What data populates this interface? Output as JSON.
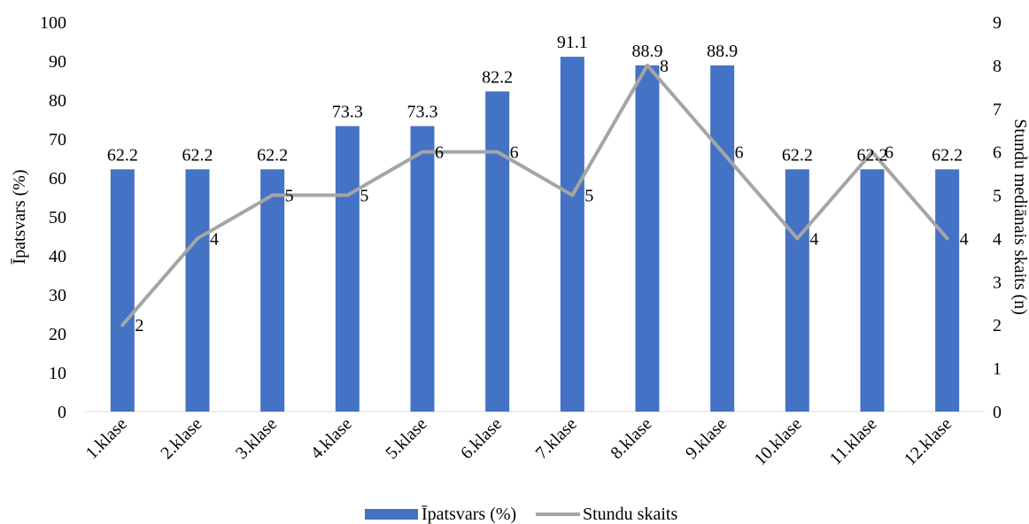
{
  "chart_data": {
    "type": "bar",
    "categories": [
      "1.klase",
      "2.klase",
      "3.klase",
      "4.klase",
      "5.klase",
      "6.klase",
      "7.klase",
      "8.klase",
      "9.klase",
      "10.klase",
      "11.klase",
      "12.klase"
    ],
    "series": [
      {
        "name": "Īpatsvars (%)",
        "type": "bar",
        "axis": "left",
        "color": "#4472C4",
        "values": [
          62.2,
          62.2,
          62.2,
          73.3,
          73.3,
          82.2,
          91.1,
          88.9,
          88.9,
          62.2,
          62.2,
          62.2
        ],
        "labels": [
          "62.2",
          "62.2",
          "62.2",
          "73.3",
          "73.3",
          "82.2",
          "91.1",
          "88.9",
          "88.9",
          "62.2",
          "62.2",
          "62.2"
        ]
      },
      {
        "name": "Stundu skaits",
        "type": "line",
        "axis": "right",
        "color": "#A5A5A5",
        "values": [
          2,
          4,
          5,
          5,
          6,
          6,
          5,
          8,
          6,
          4,
          6,
          4
        ],
        "labels": [
          "2",
          "4",
          "5",
          "5",
          "6",
          "6",
          "5",
          "8",
          "6",
          "4",
          "6",
          "4"
        ]
      }
    ],
    "ylabel": "Īpatsvars (%)",
    "y2label": "Stundu mediānais skaits (n)",
    "ylim": [
      0,
      100
    ],
    "y2lim": [
      0,
      9
    ],
    "yticks": [
      "0",
      "10",
      "20",
      "30",
      "40",
      "50",
      "60",
      "70",
      "80",
      "90",
      "100"
    ],
    "y2ticks": [
      "0",
      "1",
      "2",
      "3",
      "4",
      "5",
      "6",
      "7",
      "8",
      "9"
    ],
    "grid": false,
    "legend_position": "bottom"
  }
}
